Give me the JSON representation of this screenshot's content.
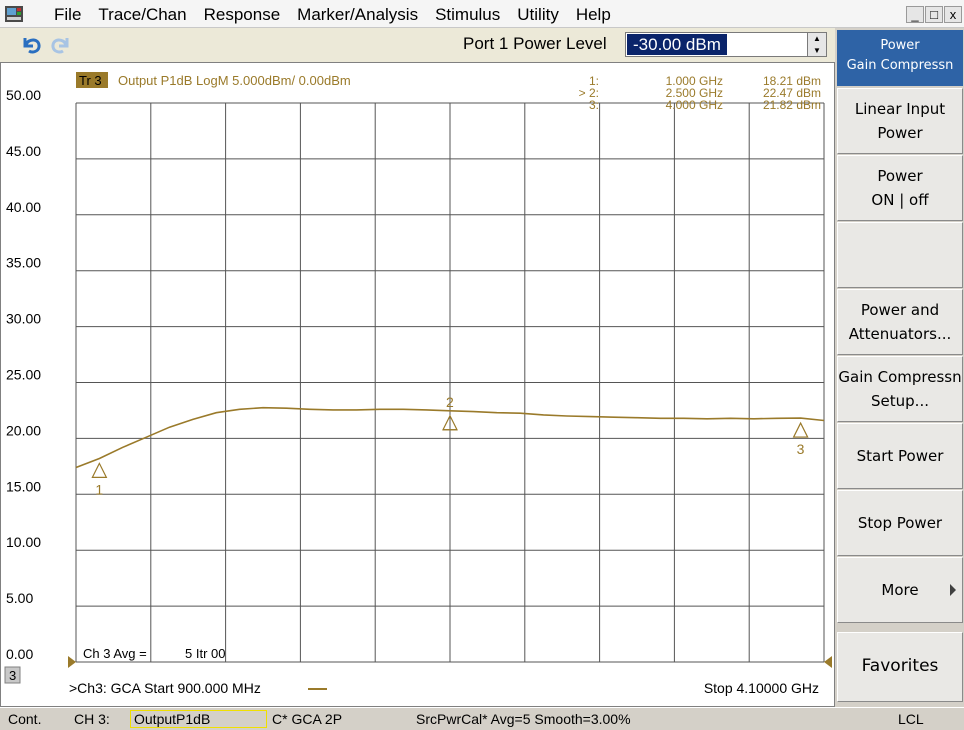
{
  "menu": {
    "items": [
      "File",
      "Trace/Chan",
      "Response",
      "Marker/Analysis",
      "Stimulus",
      "Utility",
      "Help"
    ],
    "window_controls": [
      "_",
      "□",
      "x"
    ]
  },
  "toolbar": {
    "power_label": "Port 1 Power Level",
    "power_value": "-30.00 dBm"
  },
  "trace": {
    "tag": "Tr 3",
    "description": "Output P1dB LogM 5.000dBm/  0.00dBm",
    "color": "#9a7a2a"
  },
  "marker_table": [
    {
      "id": "1:",
      "freq": "1.000 GHz",
      "value": "18.21 dBm"
    },
    {
      "id": "> 2:",
      "freq": "2.500 GHz",
      "value": "22.47 dBm"
    },
    {
      "id": "3:",
      "freq": "4.000 GHz",
      "value": "21.82 dBm"
    }
  ],
  "chart_data": {
    "type": "line",
    "x_start_ghz": 0.9,
    "x_stop_ghz": 4.1,
    "ylim": [
      0,
      50
    ],
    "y_ticks": [
      "50.00",
      "45.00",
      "40.00",
      "35.00",
      "30.00",
      "25.00",
      "20.00",
      "15.00",
      "10.00",
      "5.00",
      "0.00"
    ],
    "grid": true,
    "series": [
      {
        "x": [
          0.9,
          1.0,
          1.1,
          1.2,
          1.3,
          1.4,
          1.5,
          1.6,
          1.7,
          1.8,
          1.9,
          2.0,
          2.1,
          2.2,
          2.3,
          2.4,
          2.5,
          2.6,
          2.7,
          2.8,
          2.9,
          3.0,
          3.1,
          3.2,
          3.3,
          3.4,
          3.5,
          3.6,
          3.7,
          3.8,
          3.9,
          4.0,
          4.1
        ],
        "y": [
          17.4,
          18.2,
          19.2,
          20.1,
          21.0,
          21.7,
          22.3,
          22.6,
          22.75,
          22.7,
          22.6,
          22.55,
          22.55,
          22.6,
          22.6,
          22.55,
          22.47,
          22.4,
          22.3,
          22.25,
          22.1,
          22.0,
          21.95,
          21.9,
          21.85,
          21.8,
          21.8,
          21.75,
          21.8,
          21.75,
          21.8,
          21.82,
          21.6
        ]
      }
    ],
    "markers": [
      {
        "label": "1",
        "x": 1.0,
        "y": 18.21
      },
      {
        "label": "2",
        "x": 2.5,
        "y": 22.47
      },
      {
        "label": "3",
        "x": 4.0,
        "y": 21.82
      }
    ]
  },
  "chart_footer": {
    "avg_label": "Ch 3 Avg =",
    "avg_value": "5 Itr 00",
    "channel_num": "3",
    "channel_info": ">Ch3: GCA  Start  900.000 MHz",
    "stop": "Stop  4.10000 GHz"
  },
  "softkeys": {
    "header_line1": "Power",
    "header_line2": "Gain Compressn",
    "keys": [
      {
        "line1": "Linear Input",
        "line2": "Power"
      },
      {
        "line1": "Power",
        "line2": "ON | off"
      },
      {
        "line1": "",
        "line2": ""
      },
      {
        "line1": "Power and",
        "line2": "Attenuators..."
      },
      {
        "line1": "Gain Compressn",
        "line2": "Setup..."
      },
      {
        "line1": "Start Power",
        "line2": ""
      },
      {
        "line1": "Stop Power",
        "line2": ""
      },
      {
        "line1": "More",
        "line2": ""
      },
      {
        "line1": "Favorites",
        "line2": ""
      }
    ]
  },
  "statusbar": {
    "mode": "Cont.",
    "channel": "CH 3:",
    "measurement": "OutputP1dB",
    "cal": "C* GCA 2P",
    "info": "SrcPwrCal* Avg=5 Smooth=3.00%",
    "remote": "LCL"
  }
}
